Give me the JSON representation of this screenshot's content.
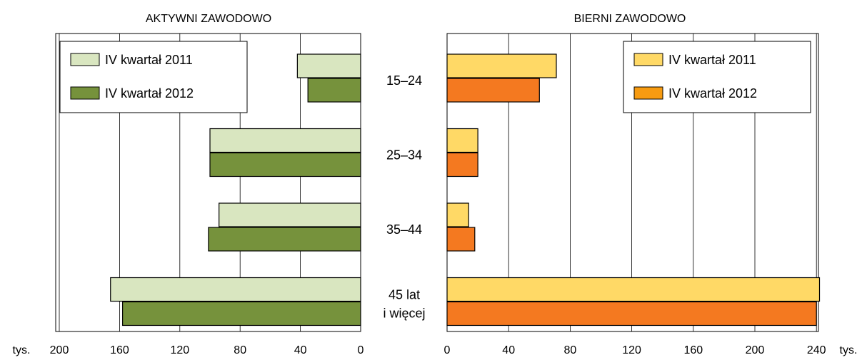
{
  "chart_data": [
    {
      "type": "bar",
      "orientation": "horizontal",
      "direction": "right-to-left",
      "title": "AKTYWNI ZAWODOWO",
      "unit_label": "tys.",
      "categories": [
        "15–24",
        "25–34",
        "35–44",
        "45 lat i więcej"
      ],
      "series": [
        {
          "name": "IV kwartał 2011",
          "values": [
            42,
            100,
            94,
            166
          ],
          "color": "#d9e6c0"
        },
        {
          "name": "IV kwartał 2012",
          "values": [
            35,
            100,
            101,
            158
          ],
          "color": "#76923c"
        }
      ],
      "xlim": [
        200,
        0
      ],
      "ticks": [
        "200",
        "160",
        "120",
        "80",
        "40",
        "0"
      ],
      "grid": true,
      "legend": "top-left"
    },
    {
      "type": "bar",
      "orientation": "horizontal",
      "direction": "left-to-right",
      "title": "BIERNI ZAWODOWO",
      "unit_label": "tys.",
      "categories": [
        "15–24",
        "25–34",
        "35–44",
        "45 lat i więcej"
      ],
      "series": [
        {
          "name": "IV kwartał 2011",
          "values": [
            71,
            20,
            14,
            242
          ],
          "color": "#ffd966"
        },
        {
          "name": "IV kwartał 2012",
          "values": [
            60,
            20,
            18,
            240
          ],
          "color": "#f47920",
          "legend_color": "#f79b11"
        }
      ],
      "xlim": [
        0,
        240
      ],
      "ticks": [
        "0",
        "40",
        "80",
        "120",
        "160",
        "200",
        "240"
      ],
      "grid": true,
      "legend": "top-right"
    }
  ],
  "category_labels": [
    {
      "lines": [
        "15–24"
      ]
    },
    {
      "lines": [
        "25–34"
      ]
    },
    {
      "lines": [
        "35–44"
      ]
    },
    {
      "lines": [
        "45 lat",
        "i więcej"
      ]
    }
  ]
}
